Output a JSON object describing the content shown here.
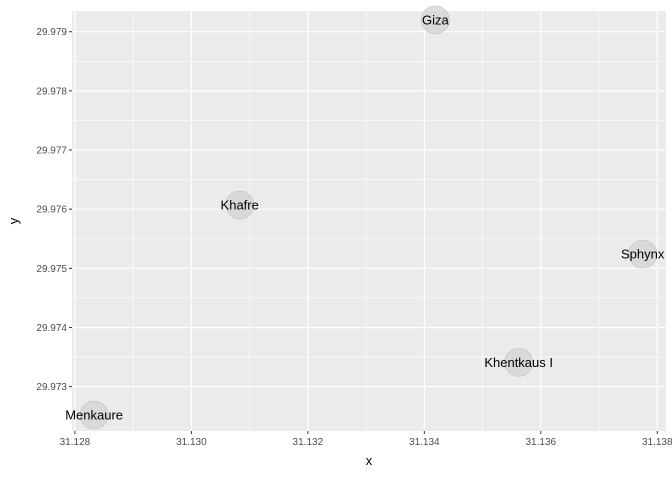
{
  "chart_data": {
    "type": "scatter",
    "title": "",
    "xlabel": "x",
    "ylabel": "y",
    "xlim": [
      31.12795,
      31.13815
    ],
    "ylim": [
      29.97225,
      29.97935
    ],
    "grid": true,
    "legend": "none",
    "x_ticks": [
      "31.128",
      "31.130",
      "31.132",
      "31.134",
      "31.136",
      "31.138"
    ],
    "y_ticks": [
      "29.973",
      "29.974",
      "29.975",
      "29.976",
      "29.977",
      "29.978",
      "29.979"
    ],
    "points": [
      {
        "label": "Menkaure",
        "x": 31.12833,
        "y": 29.97252
      },
      {
        "label": "Khafre",
        "x": 31.13083,
        "y": 29.97607
      },
      {
        "label": "Giza",
        "x": 31.13419,
        "y": 29.9792
      },
      {
        "label": "Khentkaus I",
        "x": 31.13562,
        "y": 29.97341
      },
      {
        "label": "Sphynx",
        "x": 31.13775,
        "y": 29.97524
      }
    ],
    "colors": {
      "panel": "#ebebeb",
      "grid": "#ffffff",
      "point_fill": "#d3d3d3",
      "point_stroke": "#c0c0c0"
    }
  }
}
